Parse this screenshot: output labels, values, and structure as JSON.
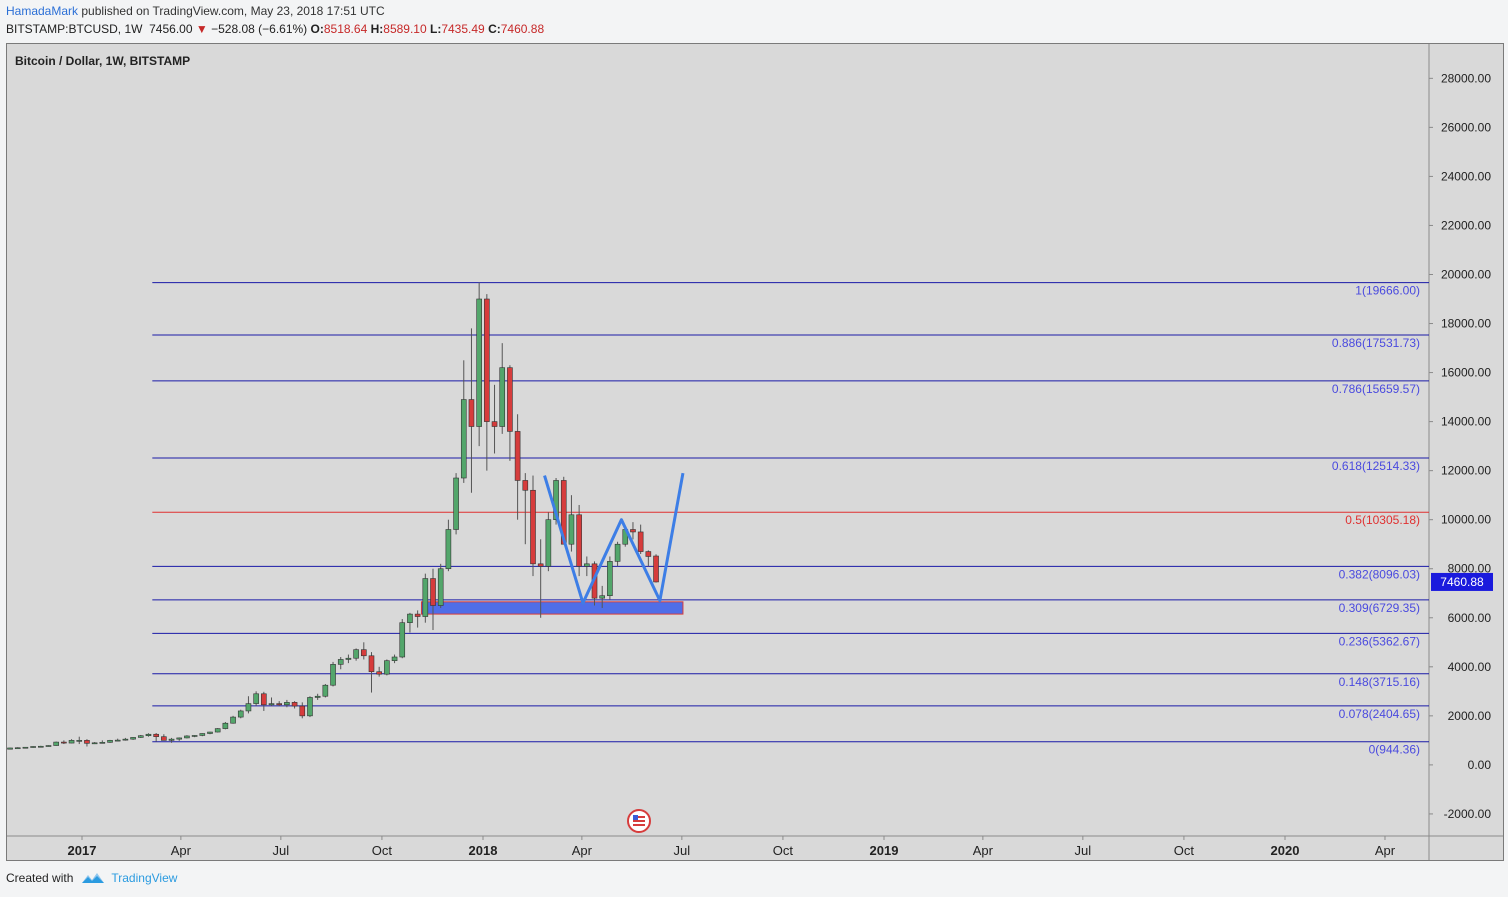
{
  "header": {
    "author": "HamadaMark",
    "published": "published on TradingView.com, May 23, 2018 17:51 UTC",
    "symbol": "BITSTAMP:BTCUSD, 1W",
    "last": "7456.00",
    "change": "−528.08 (−6.61%)",
    "o_label": "O:",
    "o_val": "8518.64",
    "h_label": "H:",
    "h_val": "8589.10",
    "l_label": "L:",
    "l_val": "7435.49",
    "c_label": "C:",
    "c_val": "7460.88"
  },
  "footer": {
    "created_with": "Created with",
    "brand": "TradingView"
  },
  "colors": {
    "up": "#53a66b",
    "down": "#d63c3c",
    "fib_line": "#1a1aa8",
    "fib_mid": "#e03030",
    "fib_label": "#4a4adf",
    "pattern": "#3d7ee6",
    "zone": "#4f6ee8",
    "price_tag": "#1a1add"
  },
  "chart_data": {
    "type": "candlestick",
    "title": "Bitcoin / Dollar, 1W, BITSTAMP",
    "ylim": [
      -2900,
      29400
    ],
    "y_ticks": [
      "28000.00",
      "26000.00",
      "24000.00",
      "22000.00",
      "20000.00",
      "18000.00",
      "16000.00",
      "14000.00",
      "12000.00",
      "10000.00",
      "8000.00",
      "6000.00",
      "4000.00",
      "2000.00",
      "0.00",
      "-2000.00"
    ],
    "x_ticks": [
      {
        "label": "2017",
        "date": "2017-01-01",
        "bold": true
      },
      {
        "label": "Apr",
        "date": "2017-04-01"
      },
      {
        "label": "Jul",
        "date": "2017-07-01"
      },
      {
        "label": "Oct",
        "date": "2017-10-01"
      },
      {
        "label": "2018",
        "date": "2018-01-01",
        "bold": true
      },
      {
        "label": "Apr",
        "date": "2018-04-01"
      },
      {
        "label": "Jul",
        "date": "2018-07-01"
      },
      {
        "label": "Oct",
        "date": "2018-10-01"
      },
      {
        "label": "2019",
        "date": "2019-01-01",
        "bold": true
      },
      {
        "label": "Apr",
        "date": "2019-04-01"
      },
      {
        "label": "Jul",
        "date": "2019-07-01"
      },
      {
        "label": "Oct",
        "date": "2019-10-01"
      },
      {
        "label": "2020",
        "date": "2020-01-01",
        "bold": true
      },
      {
        "label": "Apr",
        "date": "2020-04-01"
      }
    ],
    "first_week": "2016-10-03",
    "candles": [
      [
        610,
        620,
        605,
        615
      ],
      [
        615,
        640,
        610,
        635
      ],
      [
        635,
        650,
        625,
        640
      ],
      [
        640,
        700,
        635,
        690
      ],
      [
        690,
        720,
        680,
        700
      ],
      [
        700,
        730,
        690,
        720
      ],
      [
        720,
        760,
        700,
        750
      ],
      [
        750,
        780,
        720,
        760
      ],
      [
        760,
        800,
        745,
        790
      ],
      [
        790,
        950,
        780,
        930
      ],
      [
        930,
        1000,
        850,
        890
      ],
      [
        890,
        1050,
        880,
        1000
      ],
      [
        1000,
        1150,
        850,
        1000
      ],
      [
        1000,
        1050,
        750,
        880
      ],
      [
        880,
        930,
        850,
        900
      ],
      [
        900,
        1000,
        880,
        920
      ],
      [
        920,
        1020,
        900,
        1000
      ],
      [
        1000,
        1070,
        970,
        1010
      ],
      [
        1010,
        1100,
        990,
        1050
      ],
      [
        1050,
        1130,
        1020,
        1120
      ],
      [
        1120,
        1220,
        1100,
        1190
      ],
      [
        1190,
        1290,
        1150,
        1250
      ],
      [
        1250,
        1300,
        950,
        1150
      ],
      [
        1150,
        1250,
        1000,
        1000
      ],
      [
        1000,
        1100,
        900,
        1050
      ],
      [
        1050,
        1120,
        980,
        1100
      ],
      [
        1100,
        1210,
        1080,
        1180
      ],
      [
        1180,
        1210,
        1130,
        1200
      ],
      [
        1200,
        1290,
        1170,
        1280
      ],
      [
        1280,
        1350,
        1250,
        1340
      ],
      [
        1340,
        1500,
        1320,
        1480
      ],
      [
        1480,
        1750,
        1450,
        1700
      ],
      [
        1700,
        2000,
        1680,
        1950
      ],
      [
        1950,
        2250,
        1900,
        2200
      ],
      [
        2200,
        2800,
        2100,
        2500
      ],
      [
        2500,
        3000,
        2400,
        2900
      ],
      [
        2900,
        2980,
        2200,
        2450
      ],
      [
        2450,
        2750,
        2400,
        2500
      ],
      [
        2500,
        2600,
        2400,
        2450
      ],
      [
        2450,
        2650,
        2350,
        2550
      ],
      [
        2550,
        2600,
        2300,
        2400
      ],
      [
        2400,
        2550,
        1900,
        2000
      ],
      [
        2000,
        2800,
        1950,
        2750
      ],
      [
        2750,
        2900,
        2650,
        2800
      ],
      [
        2800,
        3300,
        2750,
        3250
      ],
      [
        3250,
        4200,
        3200,
        4100
      ],
      [
        4100,
        4400,
        3900,
        4300
      ],
      [
        4300,
        4500,
        4150,
        4350
      ],
      [
        4350,
        4750,
        4250,
        4700
      ],
      [
        4700,
        5000,
        4300,
        4450
      ],
      [
        4450,
        4600,
        2950,
        3800
      ],
      [
        3800,
        4000,
        3600,
        3700
      ],
      [
        3700,
        4300,
        3650,
        4250
      ],
      [
        4250,
        4500,
        4150,
        4400
      ],
      [
        4400,
        5950,
        4350,
        5800
      ],
      [
        5800,
        6200,
        5400,
        6150
      ],
      [
        6150,
        6300,
        5600,
        6050
      ],
      [
        6050,
        7800,
        5800,
        7600
      ],
      [
        7600,
        8000,
        5500,
        6500
      ],
      [
        6500,
        8200,
        6400,
        8000
      ],
      [
        8000,
        10000,
        7900,
        9600
      ],
      [
        9600,
        11900,
        9400,
        11700
      ],
      [
        11700,
        16500,
        11500,
        14900
      ],
      [
        14900,
        17800,
        11100,
        13800
      ],
      [
        13800,
        19666,
        13000,
        19000
      ],
      [
        19000,
        19200,
        12000,
        14000
      ],
      [
        14000,
        15500,
        12700,
        13800
      ],
      [
        13800,
        17200,
        13500,
        16200
      ],
      [
        16200,
        16300,
        12400,
        13600
      ],
      [
        13600,
        14300,
        10000,
        11600
      ],
      [
        11600,
        11900,
        9000,
        11200
      ],
      [
        11200,
        11800,
        7700,
        8200
      ],
      [
        8200,
        9200,
        6000,
        8100
      ],
      [
        8100,
        10300,
        7900,
        10000
      ],
      [
        10000,
        11700,
        9800,
        11600
      ],
      [
        11600,
        11750,
        9000,
        9000
      ],
      [
        9000,
        11000,
        8700,
        10200
      ],
      [
        10200,
        10600,
        7700,
        8100
      ],
      [
        8100,
        8500,
        7700,
        8200
      ],
      [
        8200,
        8300,
        6500,
        6800
      ],
      [
        6800,
        7300,
        6400,
        6900
      ],
      [
        6900,
        8500,
        6750,
        8300
      ],
      [
        8300,
        9100,
        8100,
        9000
      ],
      [
        9000,
        9700,
        8900,
        9600
      ],
      [
        9600,
        9900,
        9200,
        9500
      ],
      [
        9500,
        9800,
        8600,
        8700
      ],
      [
        8700,
        8750,
        8100,
        8500
      ],
      [
        8518.64,
        8589.1,
        7435.49,
        7460.88
      ]
    ],
    "fib_levels": [
      {
        "label": "1(19666.00)",
        "value": 19666
      },
      {
        "label": "0.886(17531.73)",
        "value": 17531.73
      },
      {
        "label": "0.786(15659.57)",
        "value": 15659.57
      },
      {
        "label": "0.618(12514.33)",
        "value": 12514.33
      },
      {
        "label": "0.5(10305.18)",
        "value": 10305.18
      },
      {
        "label": "0.382(8096.03)",
        "value": 8096.03
      },
      {
        "label": "0.309(6729.35)",
        "value": 6729.35
      },
      {
        "label": "0.236(5362.67)",
        "value": 5362.67
      },
      {
        "label": "0.148(3715.16)",
        "value": 3715.16
      },
      {
        "label": "0.078(2404.65)",
        "value": 2404.65
      },
      {
        "label": "0(944.36)",
        "value": 944.36
      }
    ],
    "fib_start": "2017-03-06",
    "zone": {
      "start": "2017-11-06",
      "end": "2018-07-02",
      "low": 6150,
      "high": 6650
    },
    "pattern_path": [
      {
        "date": "2018-02-26",
        "value": 11800
      },
      {
        "date": "2018-04-02",
        "value": 6600
      },
      {
        "date": "2018-05-07",
        "value": 10000
      },
      {
        "date": "2018-06-11",
        "value": 6700
      },
      {
        "date": "2018-07-02",
        "value": 11900
      }
    ],
    "last_price": "7460.88",
    "last_value": 7460.88
  }
}
